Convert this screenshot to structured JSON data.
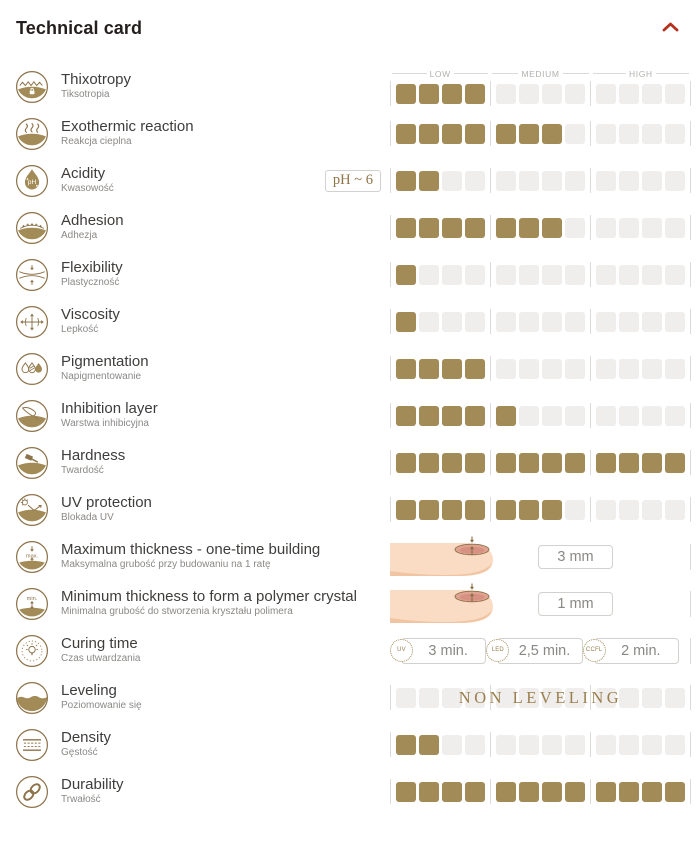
{
  "header": {
    "title": "Technical card"
  },
  "scale": {
    "labels": [
      "LOW",
      "MEDIUM",
      "HIGH"
    ],
    "squares_per_segment": 4,
    "total_squares": 12
  },
  "colors": {
    "accent_red": "#b5301c",
    "gold_fill": "#a28b56",
    "gold_stroke": "#8d734a",
    "empty_square": "#efeeec"
  },
  "rows": [
    {
      "id": "thixotropy",
      "label": "Thixotropy",
      "sublabel": "Tiksotropia",
      "type": "bar",
      "value": 4,
      "max": 12
    },
    {
      "id": "exothermic-reaction",
      "label": "Exothermic reaction",
      "sublabel": "Reakcja cieplna",
      "type": "bar",
      "value": 7,
      "max": 12
    },
    {
      "id": "acidity",
      "label": "Acidity",
      "sublabel": "Kwasowość",
      "type": "bar",
      "value": 2,
      "max": 12,
      "badge": "pH ~ 6"
    },
    {
      "id": "adhesion",
      "label": "Adhesion",
      "sublabel": "Adhezja",
      "type": "bar",
      "value": 7,
      "max": 12
    },
    {
      "id": "flexibility",
      "label": "Flexibility",
      "sublabel": "Plastyczność",
      "type": "bar",
      "value": 1,
      "max": 12
    },
    {
      "id": "viscosity",
      "label": "Viscosity",
      "sublabel": "Lepkość",
      "type": "bar",
      "value": 1,
      "max": 12
    },
    {
      "id": "pigmentation",
      "label": "Pigmentation",
      "sublabel": "Napigmentowanie",
      "type": "bar",
      "value": 4,
      "max": 12
    },
    {
      "id": "inhibition-layer",
      "label": "Inhibition layer",
      "sublabel": "Warstwa inhibicyjna",
      "type": "bar",
      "value": 5,
      "max": 12
    },
    {
      "id": "hardness",
      "label": "Hardness",
      "sublabel": "Twardość",
      "type": "bar",
      "value": 12,
      "max": 12
    },
    {
      "id": "uv-protection",
      "label": "UV protection",
      "sublabel": "Blokada UV",
      "type": "bar",
      "value": 7,
      "max": 12
    },
    {
      "id": "maximum-thickness",
      "label": "Maximum thickness - one-time building",
      "sublabel": "Maksymalna grubość przy budowaniu na 1 ratę",
      "type": "measure",
      "value_label": "3 mm"
    },
    {
      "id": "minimum-thickness",
      "label": "Minimum thickness to form a polymer crystal",
      "sublabel": "Minimalna grubość do stworzenia kryształu polimera",
      "type": "measure",
      "value_label": "1 mm"
    },
    {
      "id": "curing-time",
      "label": "Curing time",
      "sublabel": "Czas utwardzania",
      "type": "times",
      "times": [
        {
          "source": "UV",
          "value": "3 min."
        },
        {
          "source": "LED",
          "value": "2,5 min."
        },
        {
          "source": "CCFL",
          "value": "2 min."
        }
      ]
    },
    {
      "id": "leveling",
      "label": "Leveling",
      "sublabel": "Poziomowanie się",
      "type": "bar",
      "value": 0,
      "max": 12,
      "overlay": "NON LEVELING"
    },
    {
      "id": "density",
      "label": "Density",
      "sublabel": "Gęstość",
      "type": "bar",
      "value": 2,
      "max": 12
    },
    {
      "id": "durability",
      "label": "Durability",
      "sublabel": "Trwałość",
      "type": "bar",
      "value": 12,
      "max": 12
    }
  ]
}
